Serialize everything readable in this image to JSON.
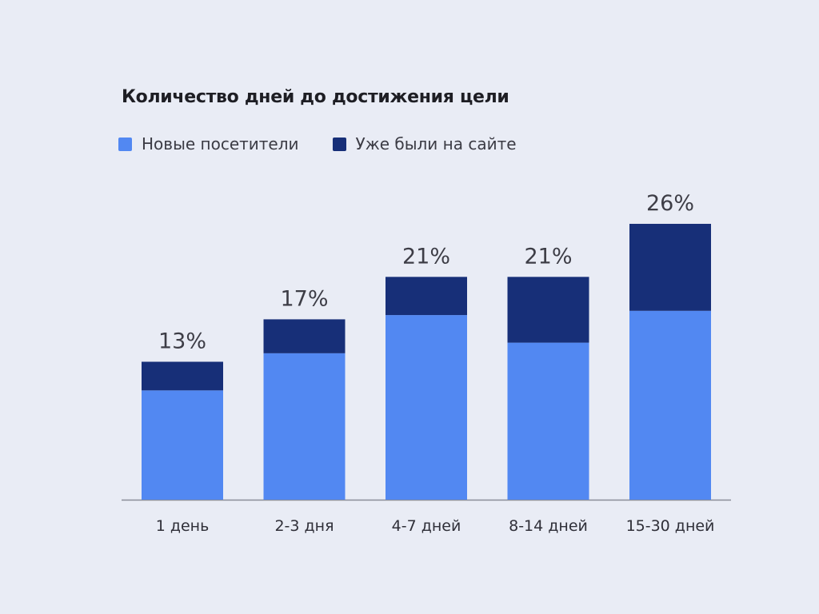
{
  "chart_data": {
    "type": "bar",
    "stacked": true,
    "title": "Количество дней до достижения цели",
    "xlabel": "",
    "ylabel": "",
    "grid": false,
    "legend_position": "top-left",
    "categories": [
      "1 день",
      "2-3 дня",
      "4-7 дней",
      "8-14 дней",
      "15-30 дней"
    ],
    "series": [
      {
        "name": "Новые посетители",
        "color": "#5288f2",
        "values": [
          10.3,
          13.8,
          17.4,
          14.8,
          17.8
        ]
      },
      {
        "name": "Уже были на сайте",
        "color": "#172f78",
        "values": [
          2.7,
          3.2,
          3.6,
          6.2,
          8.2
        ]
      }
    ],
    "totals": [
      13,
      17,
      21,
      21,
      26
    ],
    "total_labels": [
      "13%",
      "17%",
      "21%",
      "21%",
      "26%"
    ],
    "ylim": [
      0,
      26
    ]
  }
}
